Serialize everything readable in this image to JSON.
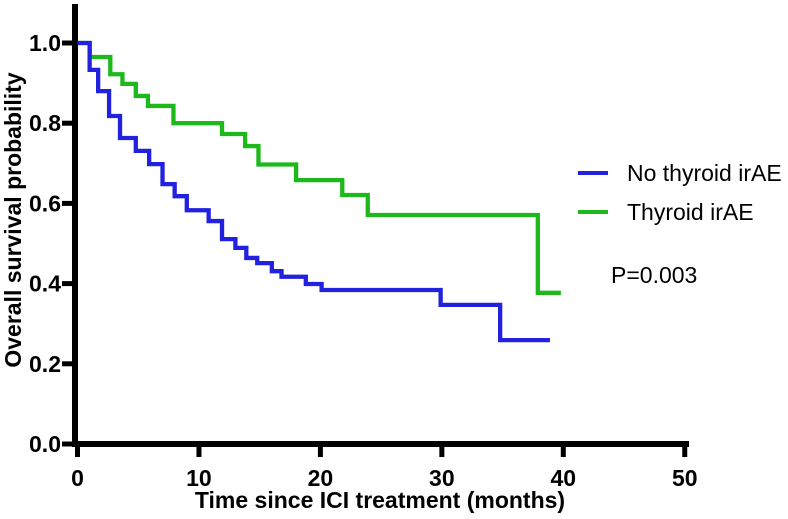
{
  "figure": {
    "background": "#ffffff",
    "text_color": "#000000"
  },
  "chart_data": {
    "type": "line",
    "subtype": "kaplan-meier-step",
    "title": "",
    "xlabel": "Time since ICI treatment (months)",
    "ylabel": "Overall survival probability",
    "xlim": [
      0,
      50
    ],
    "ylim": [
      0.0,
      1.0
    ],
    "x_ticks": [
      0,
      10,
      20,
      30,
      40,
      50
    ],
    "y_tick_labels": [
      "0.0",
      "0.2",
      "0.4",
      "0.6",
      "0.8",
      "1.0"
    ],
    "grid": false,
    "legend_position": "right-middle",
    "annotation": "P=0.003",
    "series": [
      {
        "name": "No thyroid irAE",
        "color": "#2121DE",
        "end_time": 38.9,
        "points": [
          [
            0,
            1.0
          ],
          [
            1.0,
            0.933
          ],
          [
            1.7,
            0.88
          ],
          [
            2.6,
            0.818
          ],
          [
            3.5,
            0.763
          ],
          [
            4.8,
            0.731
          ],
          [
            5.9,
            0.698
          ],
          [
            7.0,
            0.648
          ],
          [
            8.0,
            0.618
          ],
          [
            9.0,
            0.583
          ],
          [
            10.8,
            0.556
          ],
          [
            11.9,
            0.511
          ],
          [
            13.0,
            0.489
          ],
          [
            13.9,
            0.464
          ],
          [
            14.8,
            0.451
          ],
          [
            16.0,
            0.431
          ],
          [
            16.8,
            0.417
          ],
          [
            18.8,
            0.399
          ],
          [
            20.1,
            0.384
          ],
          [
            29.9,
            0.347
          ],
          [
            34.8,
            0.259
          ]
        ]
      },
      {
        "name": "Thyroid irAE",
        "color": "#1CB81C",
        "end_time": 39.8,
        "points": [
          [
            0,
            1.0
          ],
          [
            1.0,
            0.965
          ],
          [
            2.7,
            0.922
          ],
          [
            3.7,
            0.898
          ],
          [
            4.8,
            0.868
          ],
          [
            5.8,
            0.843
          ],
          [
            7.9,
            0.8
          ],
          [
            11.9,
            0.773
          ],
          [
            13.8,
            0.743
          ],
          [
            14.9,
            0.697
          ],
          [
            18.0,
            0.658
          ],
          [
            21.8,
            0.621
          ],
          [
            23.9,
            0.571
          ],
          [
            37.9,
            0.377
          ]
        ]
      }
    ]
  }
}
